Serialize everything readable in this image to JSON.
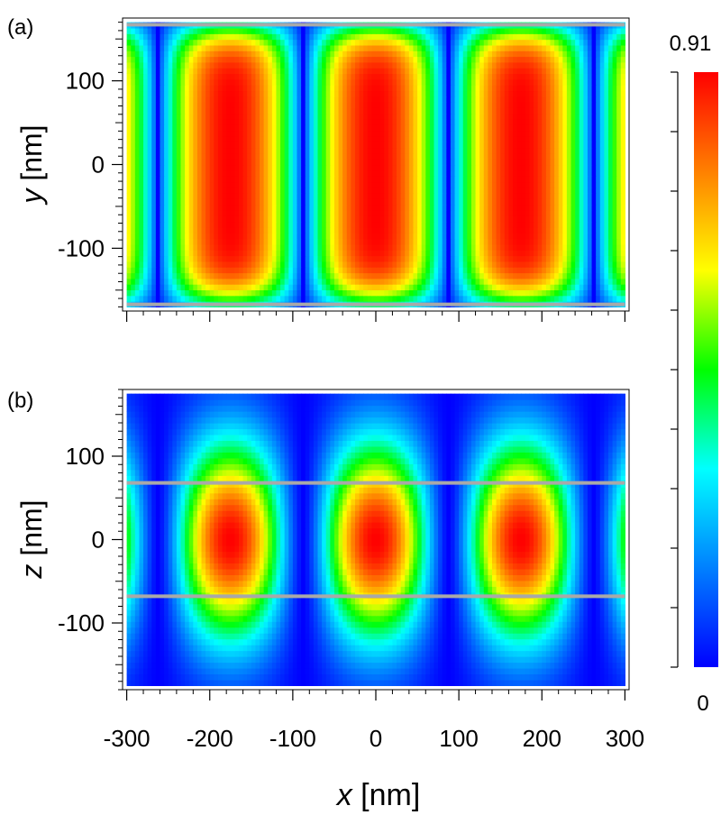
{
  "chart_data": [
    {
      "type": "heatmap",
      "panel_label": "(a)",
      "xlabel": "",
      "ylabel": "y [nm]",
      "ylabel_var": "y",
      "ylabel_unit": " [nm]",
      "xlim": [
        -305,
        305
      ],
      "ylim": [
        -175,
        175
      ],
      "data_extent_x": [
        -300,
        300
      ],
      "data_extent_y": [
        -170,
        170
      ],
      "yticks": [
        -100,
        0,
        100
      ],
      "yticklabels": [
        "-100",
        "0",
        "100"
      ],
      "xticks": [
        -300,
        -200,
        -100,
        0,
        100,
        200,
        300
      ],
      "xticklabels_visible": false,
      "field_model": "I = 0.91 * |cos(2*pi*x/350)|^p * exp(-(y/170)^8)",
      "period_nm": 350,
      "peaks_x": [
        -175,
        0,
        175
      ],
      "nodes_x": [
        -262.5,
        -87.5,
        87.5,
        262.5
      ],
      "guide_lines_y": [
        167,
        -167
      ]
    },
    {
      "type": "heatmap",
      "panel_label": "(b)",
      "xlabel": "x [nm]",
      "xlabel_var": "x",
      "xlabel_unit": " [nm]",
      "ylabel": "z [nm]",
      "ylabel_var": "z",
      "ylabel_unit": " [nm]",
      "xlim": [
        -305,
        305
      ],
      "ylim": [
        -180,
        180
      ],
      "data_extent_x": [
        -300,
        300
      ],
      "data_extent_y": [
        -175,
        175
      ],
      "yticks": [
        -100,
        0,
        100
      ],
      "yticklabels": [
        "-100",
        "0",
        "100"
      ],
      "xticks": [
        -300,
        -200,
        -100,
        0,
        100,
        200,
        300
      ],
      "xticklabels": [
        "-300",
        "-200",
        "-100",
        "0",
        "100",
        "200",
        "300"
      ],
      "field_model": "I = 0.91 * cos^2(2*pi*x/350) * exp(-(z/110)^2)",
      "period_nm": 350,
      "peaks_x": [
        -175,
        0,
        175
      ],
      "guide_lines_y": [
        68,
        -68
      ]
    }
  ],
  "colorbar": {
    "max_label": "0.91",
    "min_label": "0",
    "vmin": 0,
    "vmax": 0.91,
    "colormap": "rainbow",
    "colors": [
      "#0000ff",
      "#0080ff",
      "#00ffff",
      "#00ff00",
      "#ffff00",
      "#ff8000",
      "#ff0000"
    ],
    "n_ticks": 11
  },
  "guide_line_color": "#a9a9a9"
}
